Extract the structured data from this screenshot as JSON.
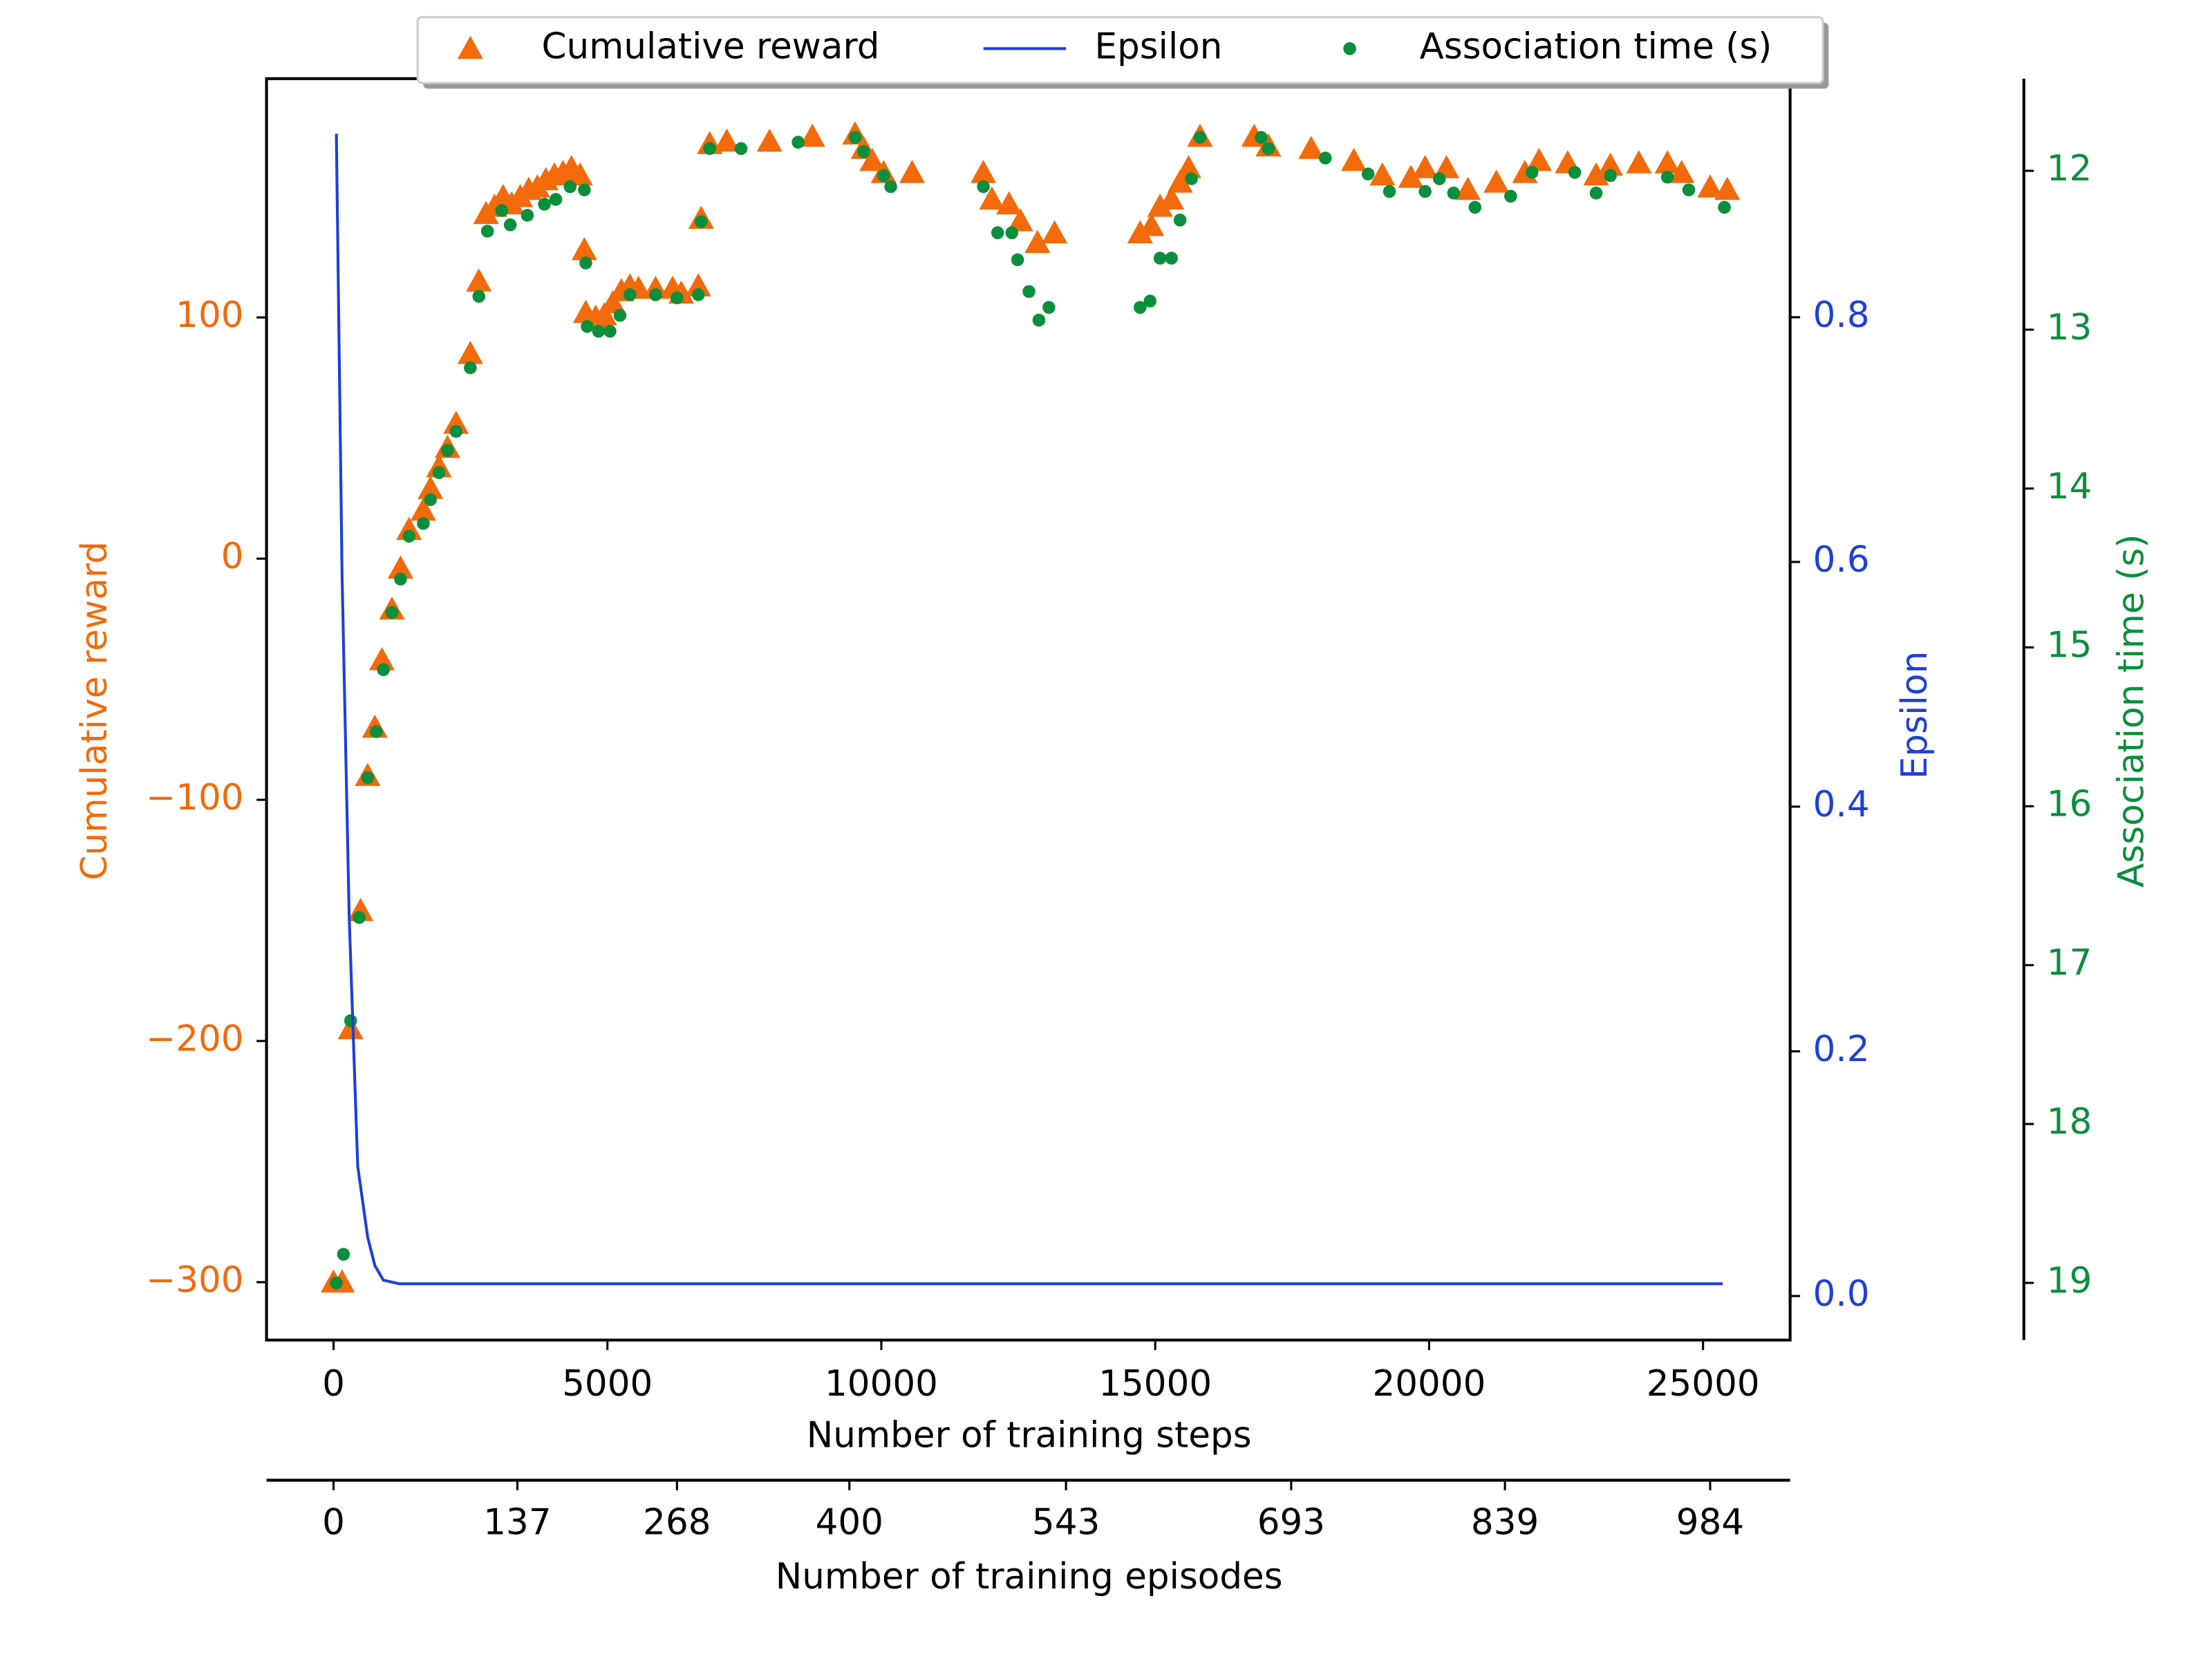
{
  "chart_data": {
    "type": "line",
    "xlabel": "Number of training steps",
    "ylabel": "Cumulative reward",
    "y2label": "Epsilon",
    "y3label": "Association time (s)",
    "x2label": "Number of training episodes",
    "xlim": [
      -1223,
      26590
    ],
    "xticks": [
      0,
      5000,
      10000,
      15000,
      20000,
      25000
    ],
    "x2ticks": [
      {
        "value": 0,
        "label": "0"
      },
      {
        "value": 3356,
        "label": "137"
      },
      {
        "value": 6270,
        "label": "268"
      },
      {
        "value": 9417,
        "label": "400"
      },
      {
        "value": 13371,
        "label": "543"
      },
      {
        "value": 17482,
        "label": "693"
      },
      {
        "value": 21384,
        "label": "839"
      },
      {
        "value": 25130,
        "label": "984"
      }
    ],
    "ylim": [
      -324,
      199
    ],
    "yticks": [
      {
        "value": -300,
        "label": "−300"
      },
      {
        "value": -200,
        "label": "−200"
      },
      {
        "value": -100,
        "label": "−100"
      },
      0,
      100
    ],
    "y2lim": [
      -0.036,
      0.995
    ],
    "y2ticks": [
      {
        "value": 0,
        "label": "0.0"
      },
      0.2,
      0.4,
      0.6,
      0.8
    ],
    "y3lim": [
      19.36,
      11.42
    ],
    "y3ticks": [
      12,
      13,
      14,
      15,
      16,
      17,
      18,
      19
    ],
    "legend": "top",
    "series": [
      {
        "name": "Cumulative reward",
        "type": "scatter",
        "marker": "triangle",
        "color": "#f26a0c",
        "axis": "y",
        "x": [
          0,
          156,
          312,
          494,
          624,
          754,
          884,
          1067,
          1223,
          1379,
          1639,
          1769,
          1925,
          2081,
          2237,
          2497,
          2653,
          2784,
          2940,
          3096,
          3252,
          3408,
          3564,
          3720,
          3876,
          4032,
          4188,
          4344,
          4500,
          4579,
          4605,
          4787,
          4943,
          5099,
          5255,
          5411,
          5567,
          5879,
          6191,
          6348,
          6660,
          6712,
          6868,
          7180,
          7960,
          8741,
          9521,
          9677,
          9834,
          10042,
          10562,
          11863,
          12019,
          12331,
          12539,
          12851,
          13163,
          14724,
          14932,
          15088,
          15297,
          15453,
          15609,
          15817,
          16806,
          17066,
          17846,
          18626,
          19147,
          19667,
          19927,
          20317,
          20708,
          21228,
          21748,
          22008,
          22529,
          23049,
          23309,
          23829,
          24350,
          24610,
          25130,
          25442
        ],
        "values": [
          -300,
          -300,
          -195,
          -146,
          -90,
          -70,
          -42,
          -21,
          -4,
          12,
          20,
          29,
          38,
          46,
          56,
          85,
          115,
          143,
          146,
          150,
          147,
          150,
          153,
          154,
          157,
          159,
          160,
          162,
          159,
          128,
          102,
          100,
          101,
          106,
          111,
          113,
          112,
          112,
          112,
          110,
          113,
          141,
          172,
          173,
          173,
          175,
          176,
          170,
          165,
          160,
          160,
          160,
          149,
          147,
          140,
          131,
          135,
          135,
          138,
          146,
          149,
          156,
          162,
          175,
          175,
          171,
          170,
          165,
          159,
          158,
          162,
          162,
          153,
          156,
          160,
          165,
          164,
          159,
          163,
          164,
          164,
          160,
          154,
          153
        ]
      },
      {
        "name": "Epsilon",
        "type": "line",
        "marker": "none",
        "color": "#1f3fd8",
        "axis": "y2",
        "x": [
          52,
          156,
          286,
          442,
          624,
          754,
          910,
          1200,
          25360
        ],
        "values": [
          0.95,
          0.59,
          0.31,
          0.106,
          0.048,
          0.025,
          0.013,
          0.01,
          0.01
        ]
      },
      {
        "name": "Association time (s)",
        "type": "scatter",
        "marker": "circle",
        "color": "#0b8f3c",
        "axis": "y3",
        "x": [
          52,
          182,
          312,
          468,
          624,
          780,
          910,
          1067,
          1223,
          1379,
          1639,
          1769,
          1925,
          2081,
          2237,
          2497,
          2653,
          2810,
          3070,
          3226,
          3538,
          3850,
          4058,
          4318,
          4579,
          4605,
          4631,
          4839,
          5047,
          5229,
          5411,
          5879,
          6270,
          6660,
          6712,
          6868,
          7440,
          8481,
          9521,
          9677,
          10042,
          10172,
          11863,
          12123,
          12383,
          12487,
          12695,
          12877,
          13059,
          14724,
          14906,
          15088,
          15297,
          15453,
          15661,
          15817,
          16936,
          17066,
          18106,
          18886,
          19276,
          19927,
          20187,
          20447,
          20837,
          21488,
          21878,
          22659,
          23049,
          23309,
          24350,
          24740,
          25390
        ],
        "values": [
          19.0,
          18.82,
          17.35,
          16.7,
          15.82,
          15.53,
          15.14,
          14.78,
          14.57,
          14.3,
          14.22,
          14.07,
          13.9,
          13.76,
          13.64,
          13.24,
          12.79,
          12.38,
          12.25,
          12.34,
          12.28,
          12.21,
          12.18,
          12.1,
          12.12,
          12.58,
          12.98,
          13.01,
          13.01,
          12.91,
          12.78,
          12.78,
          12.8,
          12.78,
          12.32,
          11.86,
          11.86,
          11.82,
          11.79,
          11.88,
          12.03,
          12.1,
          12.1,
          12.39,
          12.39,
          12.56,
          12.76,
          12.94,
          12.86,
          12.86,
          12.82,
          12.55,
          12.55,
          12.31,
          12.05,
          11.79,
          11.79,
          11.86,
          11.92,
          12.02,
          12.13,
          12.13,
          12.05,
          12.14,
          12.23,
          12.16,
          12.01,
          12.01,
          12.14,
          12.03,
          12.04,
          12.12,
          12.23
        ]
      }
    ]
  }
}
